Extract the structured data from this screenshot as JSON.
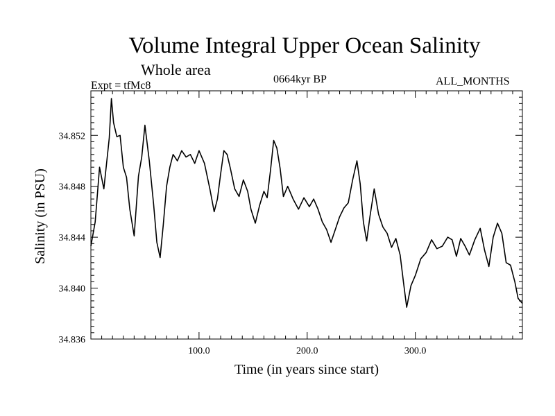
{
  "header": {
    "title": "Volume Integral Upper Ocean Salinity",
    "subtitle": "Whole area",
    "experiment": "Expt = tfMc8",
    "period": "0664kyr BP",
    "months": "ALL_MONTHS"
  },
  "chart_data": {
    "type": "line",
    "title": "Volume Integral Upper Ocean Salinity",
    "subtitle": "Whole area",
    "xlabel": "Time (in years since start)",
    "ylabel": "Salinity (in PSU)",
    "xlim": [
      0,
      399
    ],
    "ylim": [
      34.836,
      34.8555
    ],
    "x_ticks": [
      100,
      200,
      300
    ],
    "x_tick_labels": [
      "100.0",
      "200.0",
      "300.0"
    ],
    "y_ticks": [
      34.836,
      34.84,
      34.844,
      34.848,
      34.852
    ],
    "y_tick_labels": [
      "34.836",
      "34.840",
      "34.844",
      "34.848",
      "34.852"
    ],
    "grid": false,
    "line_color": "#000000",
    "series": [
      {
        "x": [
          0,
          4,
          8,
          12,
          15,
          17,
          19,
          21,
          24,
          27,
          30,
          33,
          36,
          40,
          44,
          47,
          50,
          54,
          58,
          61,
          64,
          67,
          70,
          73,
          76,
          80,
          84,
          88,
          92,
          96,
          100,
          105,
          110,
          114,
          117,
          120,
          123,
          126,
          129,
          133,
          137,
          141,
          145,
          148,
          152,
          156,
          160,
          163,
          166,
          169,
          172,
          175,
          178,
          182,
          187,
          192,
          197,
          202,
          206,
          210,
          214,
          218,
          222,
          226,
          230,
          234,
          238,
          242,
          246,
          249,
          252,
          255,
          258,
          262,
          266,
          270,
          274,
          278,
          282,
          286,
          289,
          292,
          296,
          300,
          305,
          310,
          315,
          320,
          325,
          330,
          334,
          338,
          342,
          346,
          350,
          355,
          360,
          364,
          368,
          372,
          376,
          380,
          384,
          388,
          392,
          395,
          399
        ],
        "y": [
          34.8433,
          34.8452,
          34.8495,
          34.8478,
          34.8502,
          34.8518,
          34.8549,
          34.853,
          34.8519,
          34.852,
          34.8495,
          34.8487,
          34.8462,
          34.8441,
          34.8488,
          34.8503,
          34.8528,
          34.85,
          34.8466,
          34.8436,
          34.8424,
          34.845,
          34.848,
          34.8495,
          34.8505,
          34.85,
          34.8508,
          34.8503,
          34.8505,
          34.8498,
          34.8508,
          34.8498,
          34.8478,
          34.846,
          34.847,
          34.849,
          34.8508,
          34.8505,
          34.8494,
          34.8478,
          34.8472,
          34.8485,
          34.8476,
          34.8462,
          34.8451,
          34.8465,
          34.8476,
          34.8471,
          34.8492,
          34.8516,
          34.851,
          34.8494,
          34.8472,
          34.848,
          34.847,
          34.8462,
          34.8471,
          34.8464,
          34.847,
          34.8462,
          34.8452,
          34.8446,
          34.8436,
          34.8446,
          34.8456,
          34.8463,
          34.8467,
          34.8485,
          34.85,
          34.8482,
          34.8452,
          34.8437,
          34.8456,
          34.8478,
          34.8458,
          34.8448,
          34.8443,
          34.8432,
          34.8439,
          34.8426,
          34.8405,
          34.8385,
          34.8402,
          34.841,
          34.8423,
          34.8428,
          34.8438,
          34.8431,
          34.8433,
          34.844,
          34.8438,
          34.8425,
          34.8439,
          34.8433,
          34.8426,
          34.8438,
          34.8447,
          34.843,
          34.8417,
          34.844,
          34.8451,
          34.8443,
          34.842,
          34.8418,
          34.8405,
          34.8392,
          34.8388
        ]
      }
    ]
  }
}
